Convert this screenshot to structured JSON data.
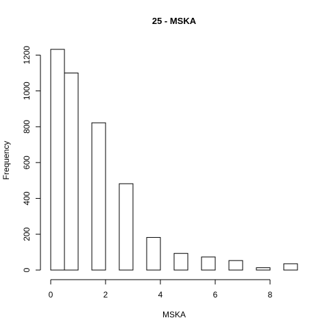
{
  "chart_data": {
    "type": "bar",
    "title": "25 - MSKA",
    "xlabel": "MSKA",
    "ylabel": "Frequency",
    "bins": [
      [
        0,
        0.5
      ],
      [
        0.5,
        1
      ],
      [
        1,
        1.5
      ],
      [
        1.5,
        2
      ],
      [
        2,
        2.5
      ],
      [
        2.5,
        3
      ],
      [
        3,
        3.5
      ],
      [
        3.5,
        4
      ],
      [
        4,
        4.5
      ],
      [
        4.5,
        5
      ],
      [
        5,
        5.5
      ],
      [
        5.5,
        6
      ],
      [
        6,
        6.5
      ],
      [
        6.5,
        7
      ],
      [
        7,
        7.5
      ],
      [
        7.5,
        8
      ],
      [
        8,
        8.5
      ],
      [
        8.5,
        9
      ]
    ],
    "values": [
      1232,
      1100,
      0,
      822,
      0,
      482,
      0,
      182,
      0,
      93,
      0,
      73,
      0,
      53,
      0,
      13,
      0,
      35
    ],
    "xlim": [
      0,
      9
    ],
    "ylim": [
      0,
      1232
    ],
    "xticks": [
      0,
      2,
      4,
      6,
      8
    ],
    "yticks": [
      0,
      200,
      400,
      600,
      800,
      1000,
      1200
    ],
    "grid": false,
    "legend": "none"
  }
}
